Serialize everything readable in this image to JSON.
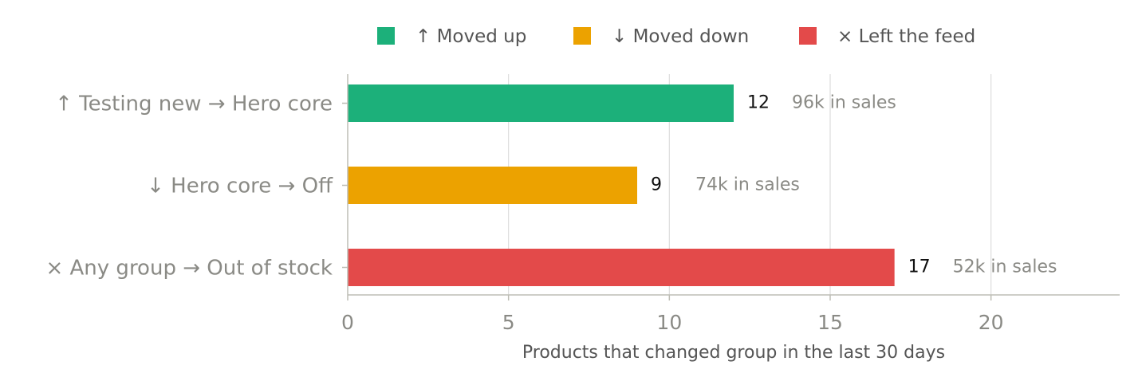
{
  "chart_data": {
    "type": "bar",
    "orientation": "horizontal",
    "categories": [
      "↑  Testing new → Hero core",
      "↓  Hero core → Off",
      "×  Any group → Out of stock"
    ],
    "values": [
      12,
      9,
      17
    ],
    "colors": [
      "#1cb07a",
      "#eca200",
      "#e34a4a"
    ],
    "annotations": [
      "96k in sales",
      "74k in sales",
      "52k in sales"
    ],
    "legend": [
      {
        "name": "↑ Moved up",
        "color": "#1cb07a"
      },
      {
        "name": "↓ Moved down",
        "color": "#eca200"
      },
      {
        "name": "× Left the feed",
        "color": "#e34a4a"
      }
    ],
    "legend_position": "top",
    "xlabel": "Products that changed group in the last 30 days",
    "ylabel": "",
    "xlim": [
      0,
      24
    ],
    "xticks": [
      0,
      5,
      10,
      15,
      20
    ],
    "grid": "vertical"
  }
}
